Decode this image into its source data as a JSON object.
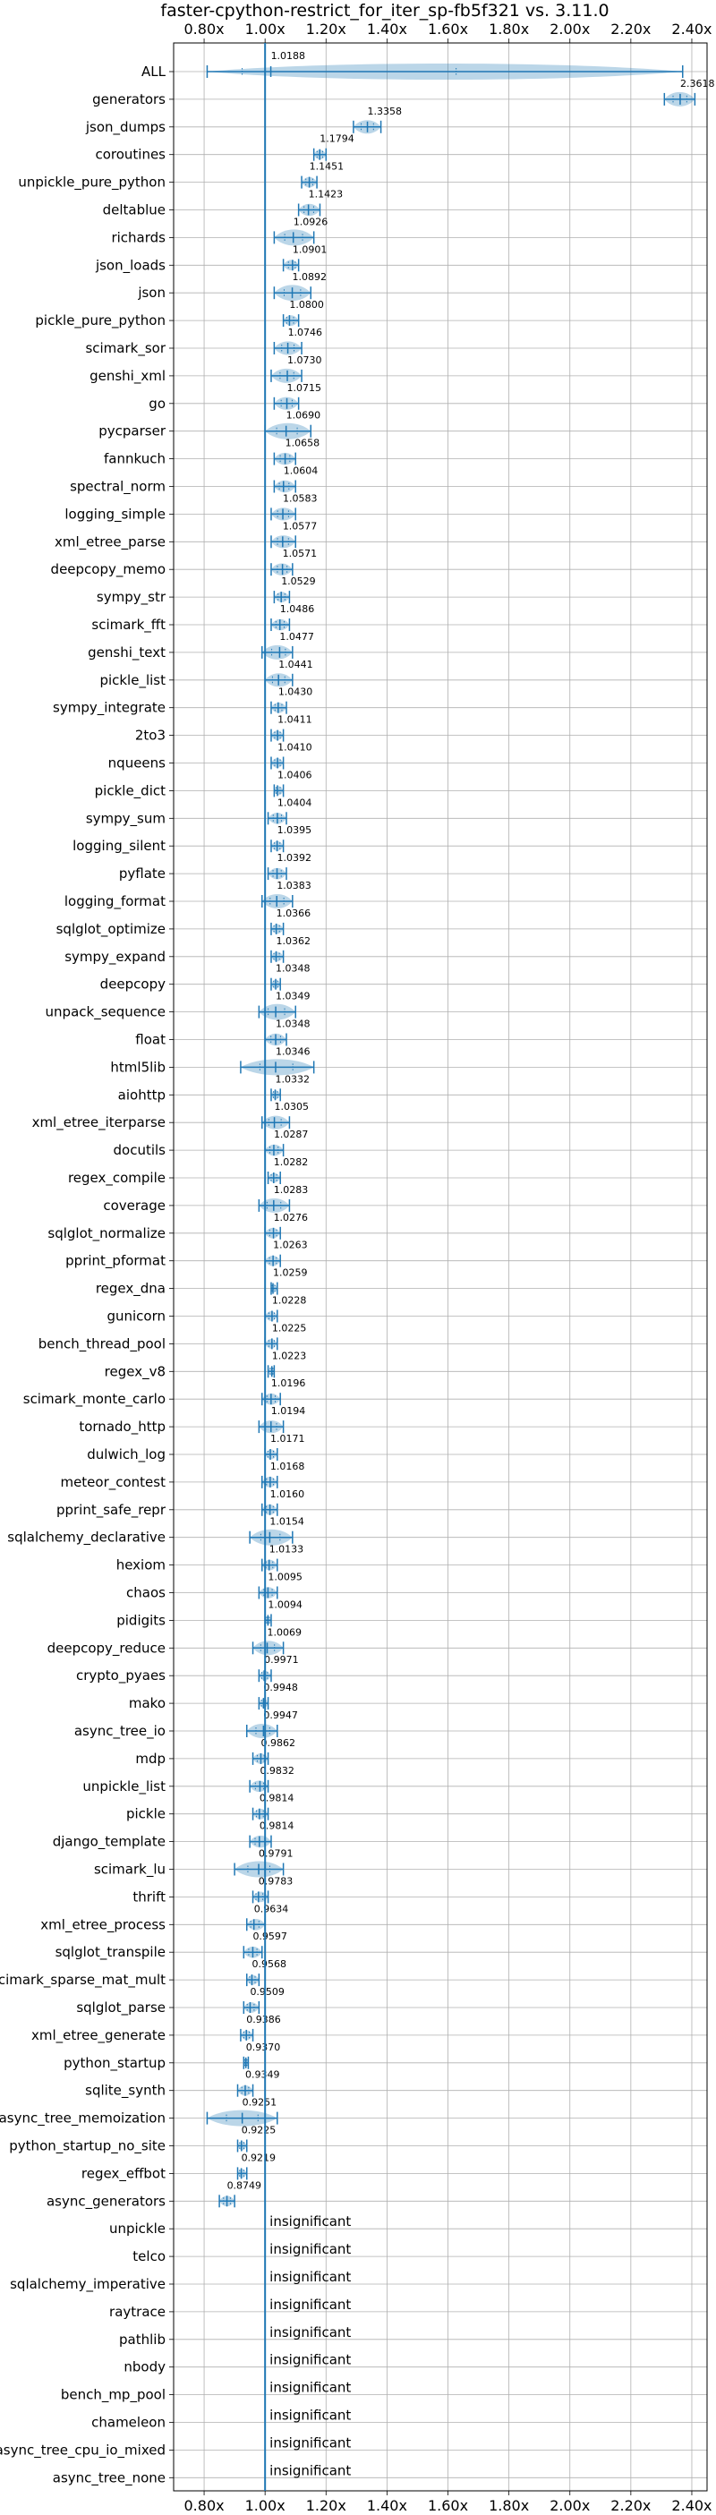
{
  "chart_data": {
    "type": "violin",
    "title": "faster-cpython-restrict_for_iter_sp-fb5f321 vs. 3.11.0",
    "xlim": [
      0.7,
      2.45
    ],
    "x_ticks": [
      0.8,
      1.0,
      1.2,
      1.4,
      1.6,
      1.8,
      2.0,
      2.2,
      2.4
    ],
    "x_tick_labels": [
      "0.80x",
      "1.00x",
      "1.20x",
      "1.40x",
      "1.60x",
      "1.80x",
      "2.00x",
      "2.20x",
      "2.40x"
    ],
    "reference_line": 1.0,
    "grid": true,
    "color": "#1f77b4",
    "insignificant_text": "insignificant",
    "rows": [
      {
        "name": "ALL",
        "value": 1.0188,
        "label": "1.0188",
        "low": 0.81,
        "high": 2.37
      },
      {
        "name": "generators",
        "value": 2.3618,
        "label": "2.3618",
        "low": 2.31,
        "high": 2.41
      },
      {
        "name": "json_dumps",
        "value": 1.3358,
        "label": "1.3358",
        "low": 1.29,
        "high": 1.38
      },
      {
        "name": "coroutines",
        "value": 1.1794,
        "label": "1.1794",
        "low": 1.16,
        "high": 1.2
      },
      {
        "name": "unpickle_pure_python",
        "value": 1.1451,
        "label": "1.1451",
        "low": 1.12,
        "high": 1.17
      },
      {
        "name": "deltablue",
        "value": 1.1423,
        "label": "1.1423",
        "low": 1.11,
        "high": 1.18
      },
      {
        "name": "richards",
        "value": 1.0926,
        "label": "1.0926",
        "low": 1.03,
        "high": 1.16
      },
      {
        "name": "json_loads",
        "value": 1.0901,
        "label": "1.0901",
        "low": 1.06,
        "high": 1.11
      },
      {
        "name": "json",
        "value": 1.0892,
        "label": "1.0892",
        "low": 1.03,
        "high": 1.15
      },
      {
        "name": "pickle_pure_python",
        "value": 1.08,
        "label": "1.0800",
        "low": 1.06,
        "high": 1.11
      },
      {
        "name": "scimark_sor",
        "value": 1.0746,
        "label": "1.0746",
        "low": 1.03,
        "high": 1.12
      },
      {
        "name": "genshi_xml",
        "value": 1.073,
        "label": "1.0730",
        "low": 1.02,
        "high": 1.12
      },
      {
        "name": "go",
        "value": 1.0715,
        "label": "1.0715",
        "low": 1.03,
        "high": 1.11
      },
      {
        "name": "pycparser",
        "value": 1.069,
        "label": "1.0690",
        "low": 1.0,
        "high": 1.15
      },
      {
        "name": "fannkuch",
        "value": 1.0658,
        "label": "1.0658",
        "low": 1.03,
        "high": 1.1
      },
      {
        "name": "spectral_norm",
        "value": 1.0604,
        "label": "1.0604",
        "low": 1.03,
        "high": 1.1
      },
      {
        "name": "logging_simple",
        "value": 1.0583,
        "label": "1.0583",
        "low": 1.02,
        "high": 1.1
      },
      {
        "name": "xml_etree_parse",
        "value": 1.0577,
        "label": "1.0577",
        "low": 1.02,
        "high": 1.1
      },
      {
        "name": "deepcopy_memo",
        "value": 1.0571,
        "label": "1.0571",
        "low": 1.02,
        "high": 1.09
      },
      {
        "name": "sympy_str",
        "value": 1.0529,
        "label": "1.0529",
        "low": 1.03,
        "high": 1.08
      },
      {
        "name": "scimark_fft",
        "value": 1.0486,
        "label": "1.0486",
        "low": 1.02,
        "high": 1.08
      },
      {
        "name": "genshi_text",
        "value": 1.0477,
        "label": "1.0477",
        "low": 0.99,
        "high": 1.09
      },
      {
        "name": "pickle_list",
        "value": 1.0441,
        "label": "1.0441",
        "low": 1.0,
        "high": 1.09
      },
      {
        "name": "sympy_integrate",
        "value": 1.043,
        "label": "1.0430",
        "low": 1.02,
        "high": 1.07
      },
      {
        "name": "2to3",
        "value": 1.0411,
        "label": "1.0411",
        "low": 1.02,
        "high": 1.06
      },
      {
        "name": "nqueens",
        "value": 1.041,
        "label": "1.0410",
        "low": 1.02,
        "high": 1.06
      },
      {
        "name": "pickle_dict",
        "value": 1.0406,
        "label": "1.0406",
        "low": 1.03,
        "high": 1.06
      },
      {
        "name": "sympy_sum",
        "value": 1.0404,
        "label": "1.0404",
        "low": 1.01,
        "high": 1.07
      },
      {
        "name": "logging_silent",
        "value": 1.0395,
        "label": "1.0395",
        "low": 1.02,
        "high": 1.06
      },
      {
        "name": "pyflate",
        "value": 1.0392,
        "label": "1.0392",
        "low": 1.01,
        "high": 1.07
      },
      {
        "name": "logging_format",
        "value": 1.0383,
        "label": "1.0383",
        "low": 0.99,
        "high": 1.09
      },
      {
        "name": "sqlglot_optimize",
        "value": 1.0366,
        "label": "1.0366",
        "low": 1.02,
        "high": 1.06
      },
      {
        "name": "sympy_expand",
        "value": 1.0362,
        "label": "1.0362",
        "low": 1.02,
        "high": 1.06
      },
      {
        "name": "deepcopy",
        "value": 1.0348,
        "label": "1.0348",
        "low": 1.02,
        "high": 1.05
      },
      {
        "name": "unpack_sequence",
        "value": 1.0349,
        "label": "1.0349",
        "low": 0.98,
        "high": 1.1
      },
      {
        "name": "float",
        "value": 1.0348,
        "label": "1.0348",
        "low": 1.0,
        "high": 1.07
      },
      {
        "name": "html5lib",
        "value": 1.0346,
        "label": "1.0346",
        "low": 0.92,
        "high": 1.16
      },
      {
        "name": "aiohttp",
        "value": 1.0332,
        "label": "1.0332",
        "low": 1.02,
        "high": 1.05
      },
      {
        "name": "xml_etree_iterparse",
        "value": 1.0305,
        "label": "1.0305",
        "low": 0.99,
        "high": 1.08
      },
      {
        "name": "docutils",
        "value": 1.0287,
        "label": "1.0287",
        "low": 1.0,
        "high": 1.06
      },
      {
        "name": "regex_compile",
        "value": 1.0282,
        "label": "1.0282",
        "low": 1.01,
        "high": 1.05
      },
      {
        "name": "coverage",
        "value": 1.0283,
        "label": "1.0283",
        "low": 0.98,
        "high": 1.08
      },
      {
        "name": "sqlglot_normalize",
        "value": 1.0276,
        "label": "1.0276",
        "low": 1.0,
        "high": 1.05
      },
      {
        "name": "pprint_pformat",
        "value": 1.0263,
        "label": "1.0263",
        "low": 1.0,
        "high": 1.05
      },
      {
        "name": "regex_dna",
        "value": 1.0259,
        "label": "1.0259",
        "low": 1.02,
        "high": 1.04
      },
      {
        "name": "gunicorn",
        "value": 1.0228,
        "label": "1.0228",
        "low": 1.0,
        "high": 1.04
      },
      {
        "name": "bench_thread_pool",
        "value": 1.0225,
        "label": "1.0225",
        "low": 1.0,
        "high": 1.04
      },
      {
        "name": "regex_v8",
        "value": 1.0223,
        "label": "1.0223",
        "low": 1.01,
        "high": 1.03
      },
      {
        "name": "scimark_monte_carlo",
        "value": 1.0196,
        "label": "1.0196",
        "low": 0.99,
        "high": 1.05
      },
      {
        "name": "tornado_http",
        "value": 1.0194,
        "label": "1.0194",
        "low": 0.98,
        "high": 1.06
      },
      {
        "name": "dulwich_log",
        "value": 1.0171,
        "label": "1.0171",
        "low": 1.0,
        "high": 1.04
      },
      {
        "name": "meteor_contest",
        "value": 1.0168,
        "label": "1.0168",
        "low": 0.99,
        "high": 1.04
      },
      {
        "name": "pprint_safe_repr",
        "value": 1.016,
        "label": "1.0160",
        "low": 0.99,
        "high": 1.04
      },
      {
        "name": "sqlalchemy_declarative",
        "value": 1.0154,
        "label": "1.0154",
        "low": 0.95,
        "high": 1.09
      },
      {
        "name": "hexiom",
        "value": 1.0133,
        "label": "1.0133",
        "low": 0.99,
        "high": 1.04
      },
      {
        "name": "chaos",
        "value": 1.0095,
        "label": "1.0095",
        "low": 0.98,
        "high": 1.04
      },
      {
        "name": "pidigits",
        "value": 1.0094,
        "label": "1.0094",
        "low": 1.0,
        "high": 1.02
      },
      {
        "name": "deepcopy_reduce",
        "value": 1.0069,
        "label": "1.0069",
        "low": 0.96,
        "high": 1.06
      },
      {
        "name": "crypto_pyaes",
        "value": 0.9971,
        "label": "0.9971",
        "low": 0.98,
        "high": 1.02
      },
      {
        "name": "mako",
        "value": 0.9948,
        "label": "0.9948",
        "low": 0.98,
        "high": 1.01
      },
      {
        "name": "async_tree_io",
        "value": 0.9947,
        "label": "0.9947",
        "low": 0.94,
        "high": 1.04
      },
      {
        "name": "mdp",
        "value": 0.9862,
        "label": "0.9862",
        "low": 0.96,
        "high": 1.01
      },
      {
        "name": "unpickle_list",
        "value": 0.9832,
        "label": "0.9832",
        "low": 0.95,
        "high": 1.01
      },
      {
        "name": "pickle",
        "value": 0.9814,
        "label": "0.9814",
        "low": 0.96,
        "high": 1.01
      },
      {
        "name": "django_template",
        "value": 0.9814,
        "label": "0.9814",
        "low": 0.95,
        "high": 1.02
      },
      {
        "name": "scimark_lu",
        "value": 0.9791,
        "label": "0.9791",
        "low": 0.9,
        "high": 1.06
      },
      {
        "name": "thrift",
        "value": 0.9783,
        "label": "0.9783",
        "low": 0.96,
        "high": 1.01
      },
      {
        "name": "xml_etree_process",
        "value": 0.9634,
        "label": "0.9634",
        "low": 0.94,
        "high": 1.0
      },
      {
        "name": "sqlglot_transpile",
        "value": 0.9597,
        "label": "0.9597",
        "low": 0.93,
        "high": 0.99
      },
      {
        "name": "scimark_sparse_mat_mult",
        "value": 0.9568,
        "label": "0.9568",
        "low": 0.94,
        "high": 0.98
      },
      {
        "name": "sqlglot_parse",
        "value": 0.9509,
        "label": "0.9509",
        "low": 0.93,
        "high": 0.98
      },
      {
        "name": "xml_etree_generate",
        "value": 0.9386,
        "label": "0.9386",
        "low": 0.92,
        "high": 0.96
      },
      {
        "name": "python_startup",
        "value": 0.937,
        "label": "0.9370",
        "low": 0.93,
        "high": 0.945
      },
      {
        "name": "sqlite_synth",
        "value": 0.9349,
        "label": "0.9349",
        "low": 0.91,
        "high": 0.96
      },
      {
        "name": "async_tree_memoization",
        "value": 0.9251,
        "label": "0.9251",
        "low": 0.81,
        "high": 1.04
      },
      {
        "name": "python_startup_no_site",
        "value": 0.9225,
        "label": "0.9225",
        "low": 0.91,
        "high": 0.94
      },
      {
        "name": "regex_effbot",
        "value": 0.9219,
        "label": "0.9219",
        "low": 0.91,
        "high": 0.94
      },
      {
        "name": "async_generators",
        "value": 0.8749,
        "label": "0.8749",
        "low": 0.85,
        "high": 0.9
      },
      {
        "name": "unpickle",
        "insignificant": true
      },
      {
        "name": "telco",
        "insignificant": true
      },
      {
        "name": "sqlalchemy_imperative",
        "insignificant": true
      },
      {
        "name": "raytrace",
        "insignificant": true
      },
      {
        "name": "pathlib",
        "insignificant": true
      },
      {
        "name": "nbody",
        "insignificant": true
      },
      {
        "name": "bench_mp_pool",
        "insignificant": true
      },
      {
        "name": "chameleon",
        "insignificant": true
      },
      {
        "name": "async_tree_cpu_io_mixed",
        "insignificant": true
      },
      {
        "name": "async_tree_none",
        "insignificant": true
      }
    ]
  }
}
